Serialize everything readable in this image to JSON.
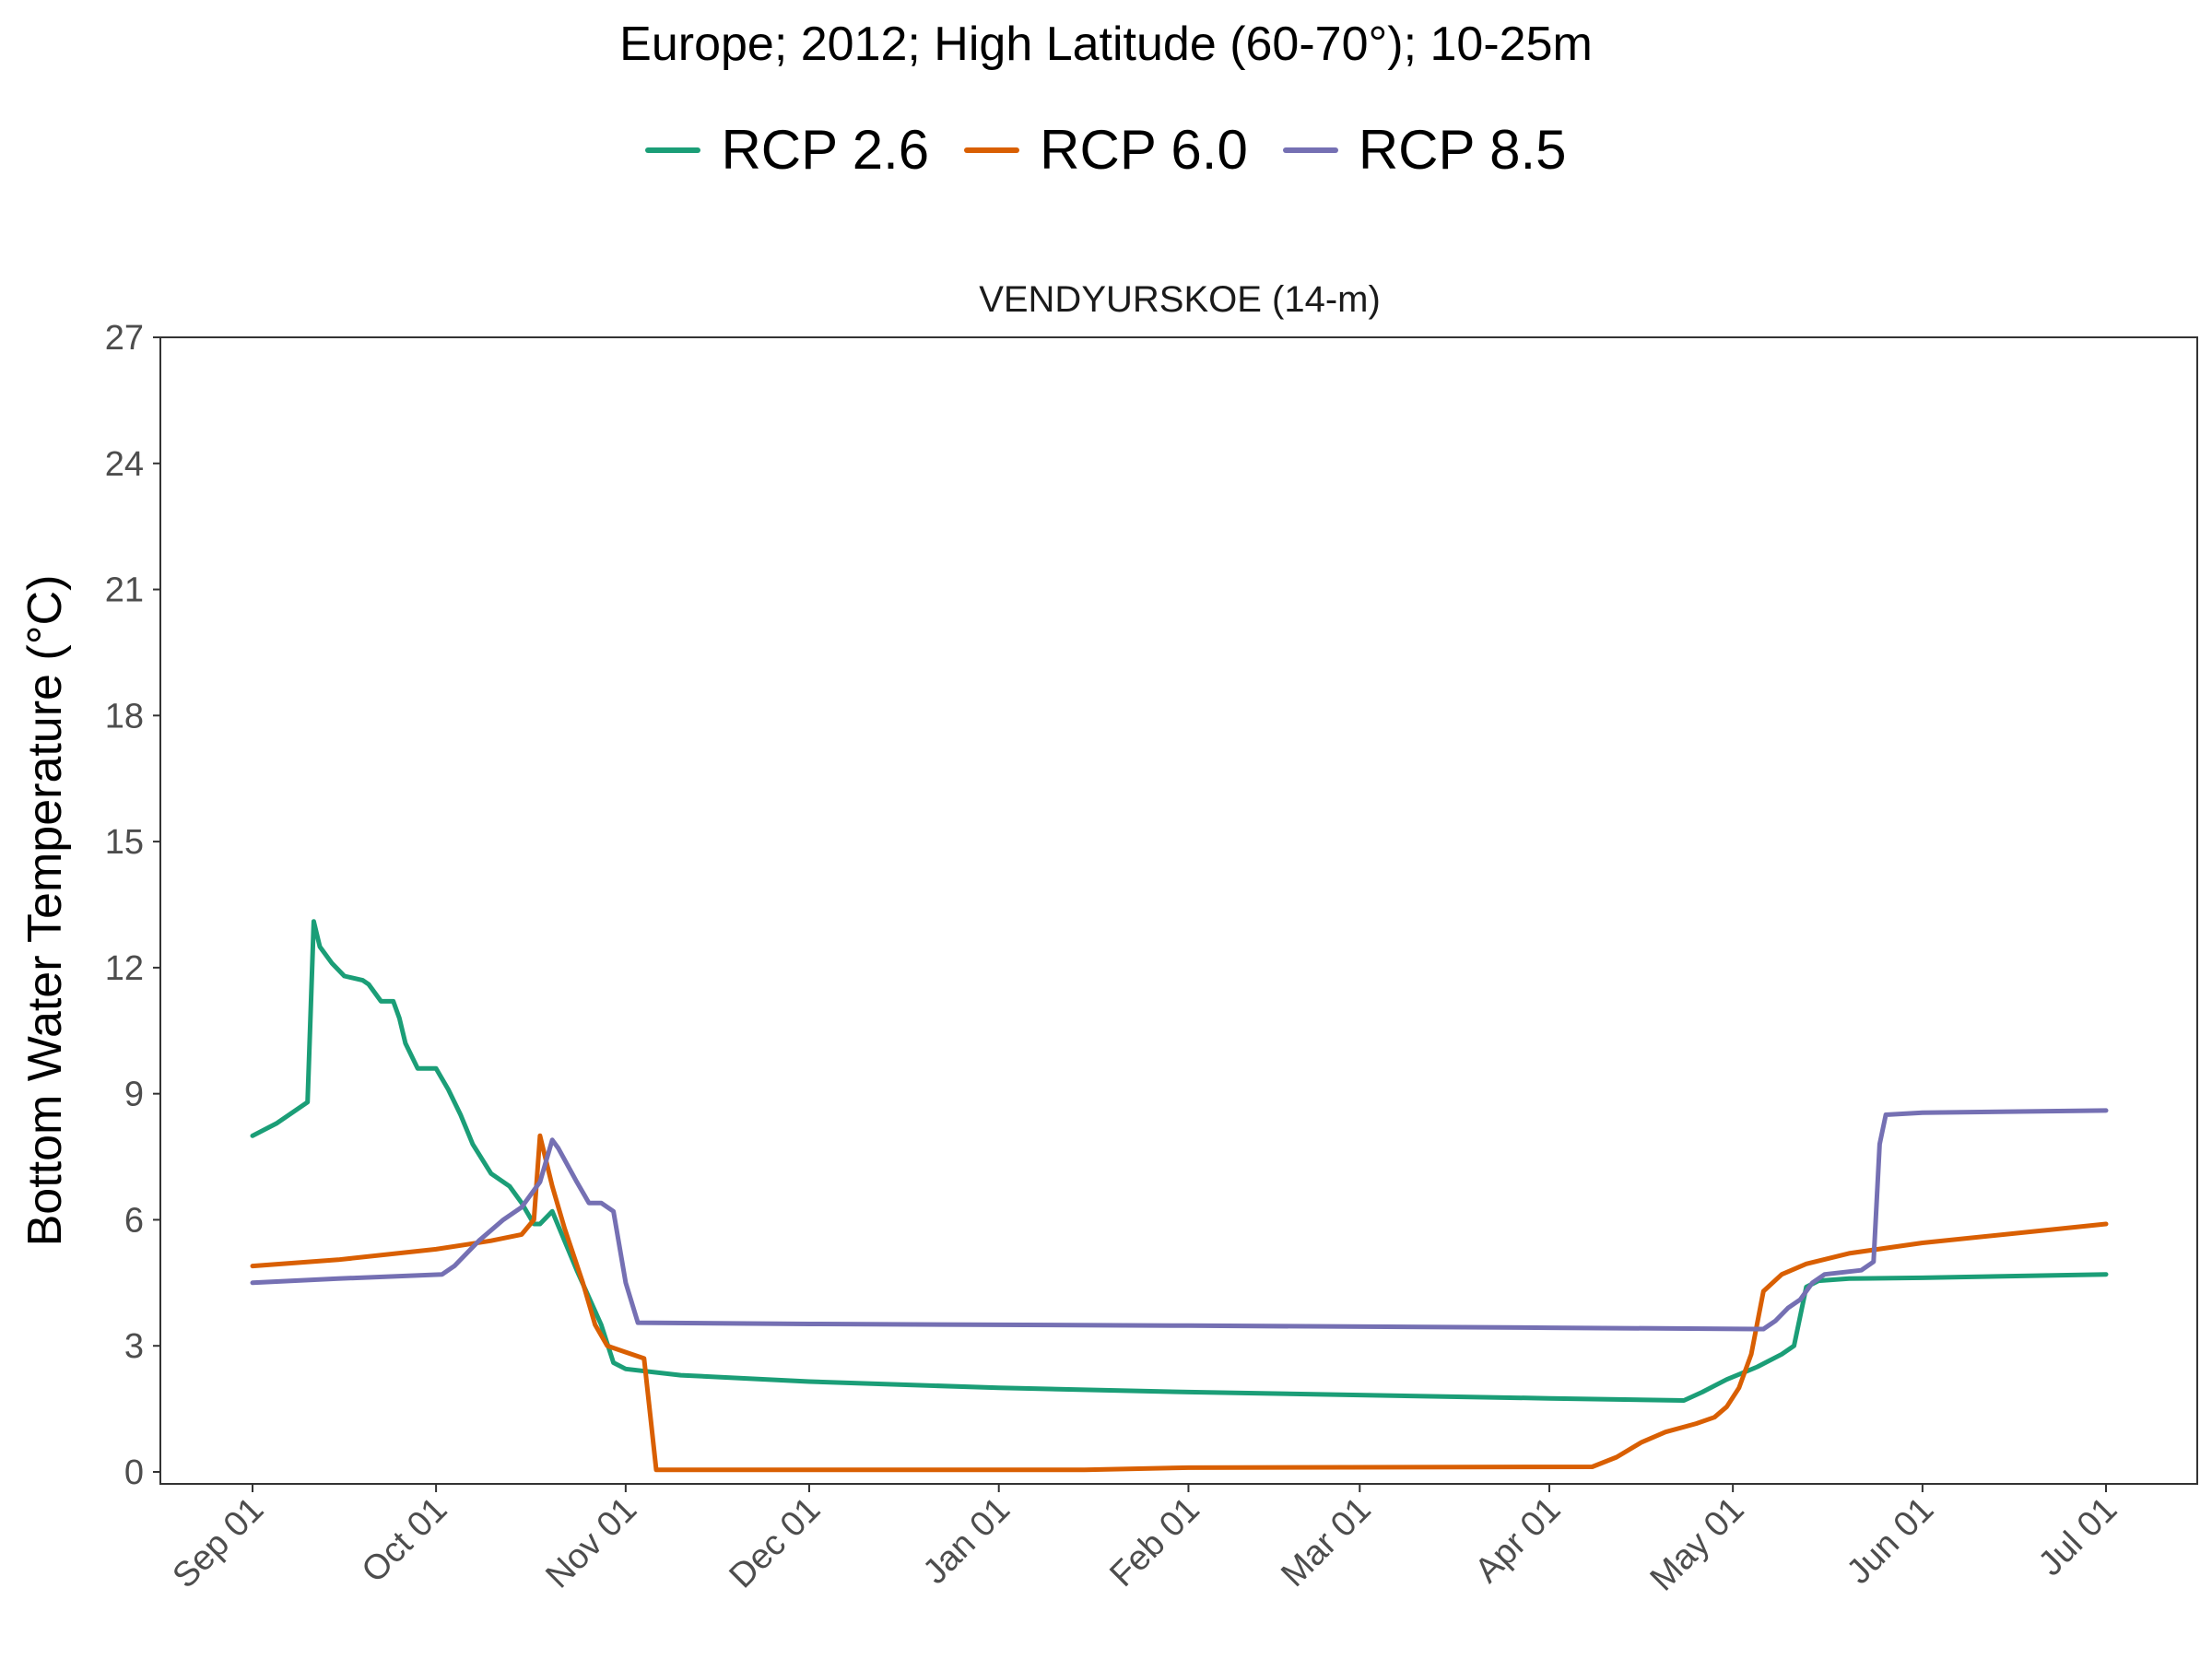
{
  "title": "Europe;  2012;  High Latitude (60-70°);  10-25m",
  "chart_data": {
    "type": "line",
    "title": "Europe;  2012;  High Latitude (60-70°);  10-25m",
    "panel_title": "VENDYURSKOE (14-m)",
    "xlabel": "",
    "ylabel": "Bottom Water Temperature (°C)",
    "ylim": [
      0,
      27
    ],
    "yticks": [
      0,
      3,
      6,
      9,
      12,
      15,
      18,
      21,
      24,
      27
    ],
    "xlim": [
      "2012-09-01",
      "2013-07-01"
    ],
    "xtick_labels": [
      "Sep 01",
      "Oct 01",
      "Nov 01",
      "Dec 01",
      "Jan 01",
      "Feb 01",
      "Mar 01",
      "Apr 01",
      "May 01",
      "Jun 01",
      "Jul 01"
    ],
    "xtick_dates": [
      "2012-09-01",
      "2012-10-01",
      "2012-11-01",
      "2012-12-01",
      "2013-01-01",
      "2013-02-01",
      "2013-03-01",
      "2013-04-01",
      "2013-05-01",
      "2013-06-01",
      "2013-07-01"
    ],
    "grid": false,
    "legend_position": "top",
    "series": [
      {
        "name": "RCP 2.6",
        "color": "#1b9e77",
        "points": [
          [
            "2012-09-01",
            8.0
          ],
          [
            "2012-09-05",
            8.3
          ],
          [
            "2012-09-10",
            8.8
          ],
          [
            "2012-09-11",
            13.1
          ],
          [
            "2012-09-12",
            12.5
          ],
          [
            "2012-09-14",
            12.1
          ],
          [
            "2012-09-16",
            11.8
          ],
          [
            "2012-09-19",
            11.7
          ],
          [
            "2012-09-20",
            11.6
          ],
          [
            "2012-09-22",
            11.2
          ],
          [
            "2012-09-24",
            11.2
          ],
          [
            "2012-09-25",
            10.8
          ],
          [
            "2012-09-26",
            10.2
          ],
          [
            "2012-09-28",
            9.6
          ],
          [
            "2012-10-01",
            9.6
          ],
          [
            "2012-10-03",
            9.1
          ],
          [
            "2012-10-05",
            8.5
          ],
          [
            "2012-10-07",
            7.8
          ],
          [
            "2012-10-10",
            7.1
          ],
          [
            "2012-10-13",
            6.8
          ],
          [
            "2012-10-15",
            6.4
          ],
          [
            "2012-10-17",
            5.9
          ],
          [
            "2012-10-18",
            5.9
          ],
          [
            "2012-10-20",
            6.2
          ],
          [
            "2012-10-24",
            4.8
          ],
          [
            "2012-10-28",
            3.5
          ],
          [
            "2012-10-30",
            2.6
          ],
          [
            "2012-11-01",
            2.45
          ],
          [
            "2012-11-10",
            2.3
          ],
          [
            "2012-12-01",
            2.15
          ],
          [
            "2013-01-01",
            2.0
          ],
          [
            "2013-02-01",
            1.9
          ],
          [
            "2013-03-01",
            1.83
          ],
          [
            "2013-04-01",
            1.75
          ],
          [
            "2013-04-23",
            1.7
          ],
          [
            "2013-04-26",
            1.9
          ],
          [
            "2013-04-30",
            2.2
          ],
          [
            "2013-05-05",
            2.5
          ],
          [
            "2013-05-09",
            2.8
          ],
          [
            "2013-05-11",
            3.0
          ],
          [
            "2013-05-13",
            4.4
          ],
          [
            "2013-05-15",
            4.55
          ],
          [
            "2013-05-20",
            4.6
          ],
          [
            "2013-06-01",
            4.62
          ],
          [
            "2013-07-01",
            4.7
          ]
        ]
      },
      {
        "name": "RCP 6.0",
        "color": "#d95f02",
        "points": [
          [
            "2012-09-01",
            4.9
          ],
          [
            "2012-09-15",
            5.05
          ],
          [
            "2012-10-01",
            5.3
          ],
          [
            "2012-10-10",
            5.5
          ],
          [
            "2012-10-15",
            5.65
          ],
          [
            "2012-10-17",
            6.0
          ],
          [
            "2012-10-18",
            8.0
          ],
          [
            "2012-10-20",
            6.8
          ],
          [
            "2012-10-22",
            5.8
          ],
          [
            "2012-10-25",
            4.5
          ],
          [
            "2012-10-27",
            3.5
          ],
          [
            "2012-10-29",
            3.0
          ],
          [
            "2012-11-01",
            2.85
          ],
          [
            "2012-11-04",
            2.7
          ],
          [
            "2012-11-06",
            0.05
          ],
          [
            "2012-12-01",
            0.05
          ],
          [
            "2013-01-15",
            0.05
          ],
          [
            "2013-02-01",
            0.1
          ],
          [
            "2013-04-08",
            0.12
          ],
          [
            "2013-04-12",
            0.35
          ],
          [
            "2013-04-16",
            0.7
          ],
          [
            "2013-04-20",
            0.95
          ],
          [
            "2013-04-25",
            1.15
          ],
          [
            "2013-04-28",
            1.3
          ],
          [
            "2013-04-30",
            1.55
          ],
          [
            "2013-05-02",
            2.0
          ],
          [
            "2013-05-04",
            2.8
          ],
          [
            "2013-05-06",
            4.3
          ],
          [
            "2013-05-09",
            4.7
          ],
          [
            "2013-05-13",
            4.95
          ],
          [
            "2013-05-20",
            5.2
          ],
          [
            "2013-06-01",
            5.45
          ],
          [
            "2013-07-01",
            5.9
          ]
        ]
      },
      {
        "name": "RCP 8.5",
        "color": "#7570b3",
        "points": [
          [
            "2012-09-01",
            4.5
          ],
          [
            "2012-09-15",
            4.6
          ],
          [
            "2012-10-02",
            4.7
          ],
          [
            "2012-10-04",
            4.9
          ],
          [
            "2012-10-08",
            5.5
          ],
          [
            "2012-10-12",
            6.0
          ],
          [
            "2012-10-15",
            6.3
          ],
          [
            "2012-10-18",
            6.9
          ],
          [
            "2012-10-20",
            7.9
          ],
          [
            "2012-10-21",
            7.7
          ],
          [
            "2012-10-24",
            6.9
          ],
          [
            "2012-10-26",
            6.4
          ],
          [
            "2012-10-28",
            6.4
          ],
          [
            "2012-10-30",
            6.2
          ],
          [
            "2012-11-01",
            4.5
          ],
          [
            "2012-11-03",
            3.55
          ],
          [
            "2012-12-01",
            3.52
          ],
          [
            "2013-02-01",
            3.48
          ],
          [
            "2013-04-01",
            3.43
          ],
          [
            "2013-05-06",
            3.4
          ],
          [
            "2013-05-08",
            3.6
          ],
          [
            "2013-05-10",
            3.9
          ],
          [
            "2013-05-12",
            4.1
          ],
          [
            "2013-05-14",
            4.5
          ],
          [
            "2013-05-16",
            4.7
          ],
          [
            "2013-05-22",
            4.8
          ],
          [
            "2013-05-24",
            5.0
          ],
          [
            "2013-05-25",
            7.8
          ],
          [
            "2013-05-26",
            8.5
          ],
          [
            "2013-06-01",
            8.55
          ],
          [
            "2013-07-01",
            8.6
          ]
        ]
      }
    ]
  }
}
